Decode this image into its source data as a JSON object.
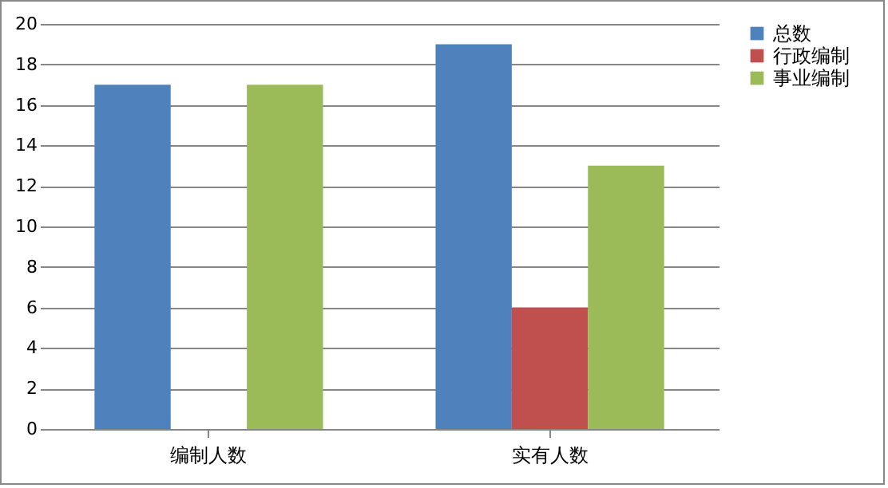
{
  "chart_data": {
    "type": "bar",
    "categories": [
      "编制人数",
      "实有人数"
    ],
    "series": [
      {
        "name": "总数",
        "color": "#4f81bd",
        "values": [
          17,
          19
        ]
      },
      {
        "name": "行政编制",
        "color": "#c0504d",
        "values": [
          0,
          6
        ]
      },
      {
        "name": "事业编制",
        "color": "#9bbb59",
        "values": [
          17,
          13
        ]
      }
    ],
    "ylim": [
      0,
      20
    ],
    "yticks": [
      0,
      2,
      4,
      6,
      8,
      10,
      12,
      14,
      16,
      18,
      20
    ],
    "grid": "y",
    "legend": "right"
  }
}
